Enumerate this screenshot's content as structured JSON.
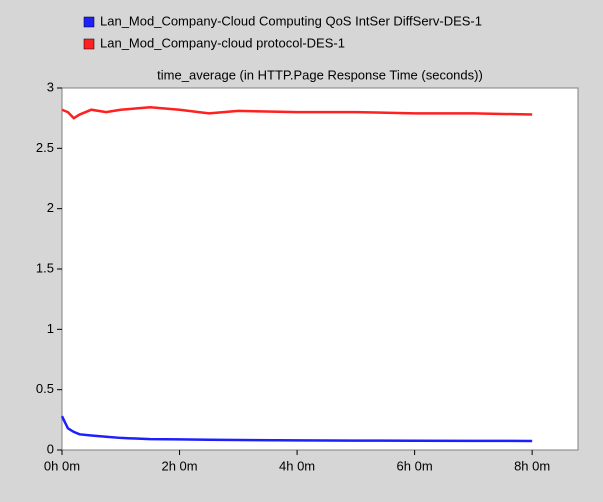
{
  "chart_data": {
    "type": "line",
    "title": "time_average (in HTTP.Page Response Time (seconds))",
    "x": [
      0,
      0.1,
      0.2,
      0.3,
      0.5,
      0.75,
      1,
      1.25,
      1.5,
      2,
      2.5,
      3,
      4,
      5,
      6,
      7,
      8
    ],
    "series": [
      {
        "name": "Lan_Mod_Company-Cloud Computing QoS IntSer DiffServ-DES-1",
        "color": "#1e1eff",
        "values": [
          0.28,
          0.18,
          0.15,
          0.13,
          0.12,
          0.11,
          0.1,
          0.095,
          0.09,
          0.088,
          0.085,
          0.083,
          0.08,
          0.078,
          0.077,
          0.076,
          0.075
        ]
      },
      {
        "name": "Lan_Mod_Company-cloud protocol-DES-1",
        "color": "#ff2020",
        "values": [
          2.82,
          2.8,
          2.75,
          2.78,
          2.82,
          2.8,
          2.82,
          2.83,
          2.84,
          2.82,
          2.79,
          2.81,
          2.8,
          2.8,
          2.79,
          2.79,
          2.78
        ]
      }
    ],
    "xlim": [
      0,
      8.78
    ],
    "xticks": [
      {
        "value": 0,
        "label": "0h 0m"
      },
      {
        "value": 2,
        "label": "2h 0m"
      },
      {
        "value": 4,
        "label": "4h 0m"
      },
      {
        "value": 6,
        "label": "6h 0m"
      },
      {
        "value": 8,
        "label": "8h 0m"
      }
    ],
    "ylim": [
      0,
      3
    ],
    "yticks": [
      0,
      0.5,
      1,
      1.5,
      2,
      2.5,
      3
    ],
    "grid": false
  }
}
